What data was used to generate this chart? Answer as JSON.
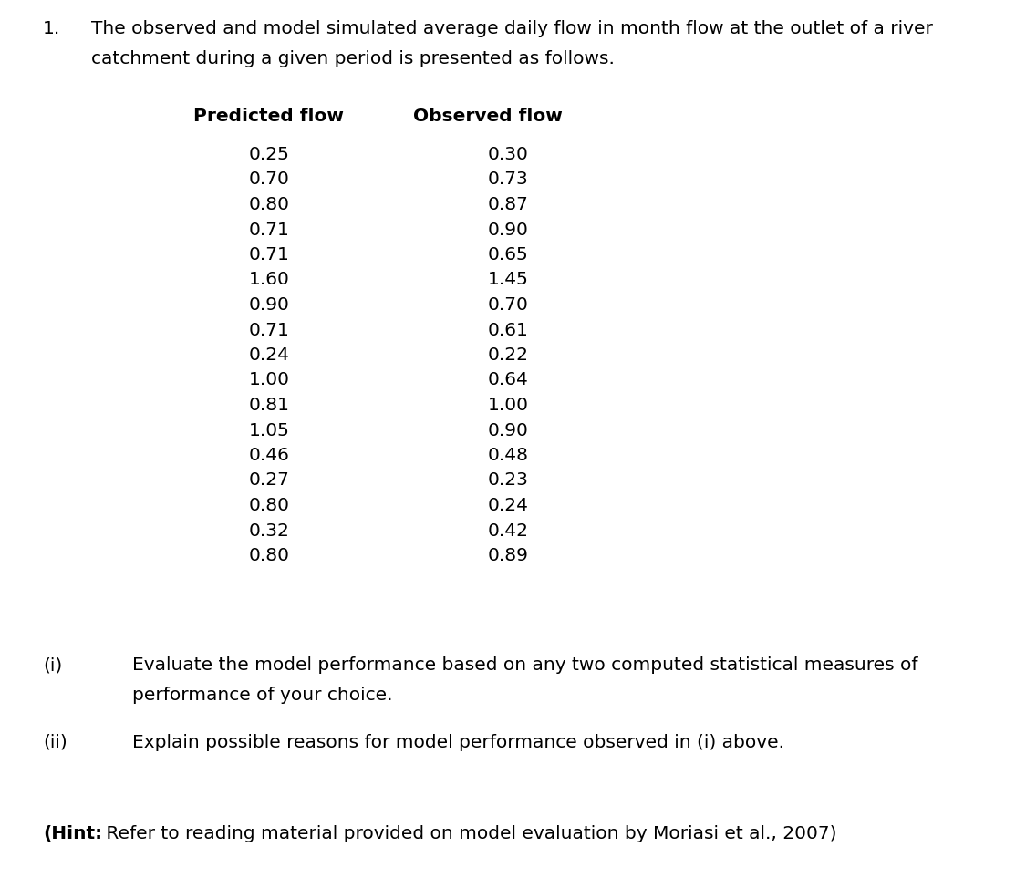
{
  "title_number": "1.",
  "title_line1": "The observed and model simulated average daily flow in month flow at the outlet of a river",
  "title_line2": "catchment during a given period is presented as follows.",
  "col1_header": "Predicted flow",
  "col2_header": "Observed flow",
  "predicted": [
    0.25,
    0.7,
    0.8,
    0.71,
    0.71,
    1.6,
    0.9,
    0.71,
    0.24,
    1.0,
    0.81,
    1.05,
    0.46,
    0.27,
    0.8,
    0.32,
    0.8
  ],
  "observed": [
    0.3,
    0.73,
    0.87,
    0.9,
    0.65,
    1.45,
    0.7,
    0.61,
    0.22,
    0.64,
    1.0,
    0.9,
    0.48,
    0.23,
    0.24,
    0.42,
    0.89
  ],
  "sub_i_label": "(i)",
  "sub_i_line1": "Evaluate the model performance based on any two computed statistical measures of",
  "sub_i_line2": "performance of your choice.",
  "sub_ii_label": "(ii)",
  "sub_ii_text": "Explain possible reasons for model performance observed in (i) above.",
  "hint_bold": "(Hint:",
  "hint_rest": " Refer to reading material provided on model evaluation by Moriasi et al., 2007)",
  "bg_color": "#ffffff",
  "text_color": "#000000",
  "font_size": 14.5
}
